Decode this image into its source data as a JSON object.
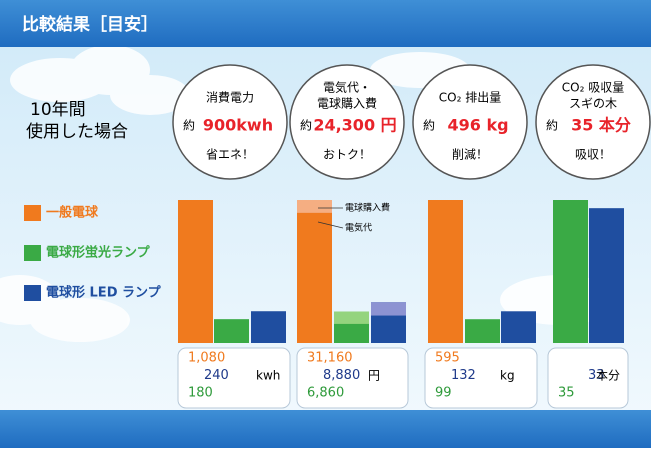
{
  "header": {
    "title": "比較結果［目安］"
  },
  "intro": [
    "10年間",
    "使用した場合"
  ],
  "circles": [
    {
      "lines": [
        "消費電力"
      ],
      "prefix": "約",
      "highlight": "900kwh",
      "footer": "省エネ！"
    },
    {
      "lines": [
        "電気代・",
        "電球購入費"
      ],
      "prefix": "約",
      "highlight": "24,300 円",
      "footer": "おトク！"
    },
    {
      "lines": [
        "CO₂ 排出量"
      ],
      "prefix": "約",
      "highlight": "496 kg",
      "footer": "削減！"
    },
    {
      "lines": [
        "CO₂ 吸収量",
        "スギの木"
      ],
      "prefix": "約",
      "highlight": "35 本分",
      "footer": "吸収！"
    }
  ],
  "legend": [
    {
      "name": "一般電球",
      "color": "#f07a1e"
    },
    {
      "name": "電球形蛍光ランプ",
      "color": "#3aaa45"
    },
    {
      "name": "電球形 LED ランプ",
      "color": "#1f4ea0"
    }
  ],
  "chart_data": [
    {
      "type": "bar",
      "unit": "kwh",
      "ylim": [
        0,
        1080
      ],
      "series": [
        {
          "color": "#f07a1e",
          "values": [
            1080
          ],
          "value_labels": [
            "1,080"
          ]
        },
        {
          "color": "#3aaa45",
          "values": [
            180
          ]
        },
        {
          "color": "#1f4ea0",
          "values": [
            240
          ]
        }
      ]
    },
    {
      "type": "bar",
      "unit": "円",
      "ylim": [
        0,
        31160
      ],
      "segment_labels": [
        "電球購入費",
        "電気代"
      ],
      "series": [
        {
          "color": "#f07a1e",
          "values": [
            31160
          ],
          "value_labels": [
            "31,160"
          ],
          "purchase": [
            2800
          ]
        },
        {
          "color": "#3aaa45",
          "values": [
            6860
          ],
          "value_labels": [
            "6,860"
          ],
          "purchase": [
            2700
          ]
        },
        {
          "color": "#1f4ea0",
          "values": [
            8880
          ],
          "value_labels": [
            "8,880"
          ],
          "purchase": [
            2900
          ]
        }
      ]
    },
    {
      "type": "bar",
      "unit": "kg",
      "ylim": [
        0,
        595
      ],
      "series": [
        {
          "color": "#f07a1e",
          "values": [
            595
          ]
        },
        {
          "color": "#3aaa45",
          "values": [
            99
          ]
        },
        {
          "color": "#1f4ea0",
          "values": [
            132
          ]
        }
      ]
    },
    {
      "type": "bar",
      "unit": "本分",
      "ylim": [
        0,
        35
      ],
      "series": [
        {
          "color": "#3aaa45",
          "values": [
            35
          ]
        },
        {
          "color": "#1f4ea0",
          "values": [
            33
          ]
        }
      ]
    }
  ]
}
